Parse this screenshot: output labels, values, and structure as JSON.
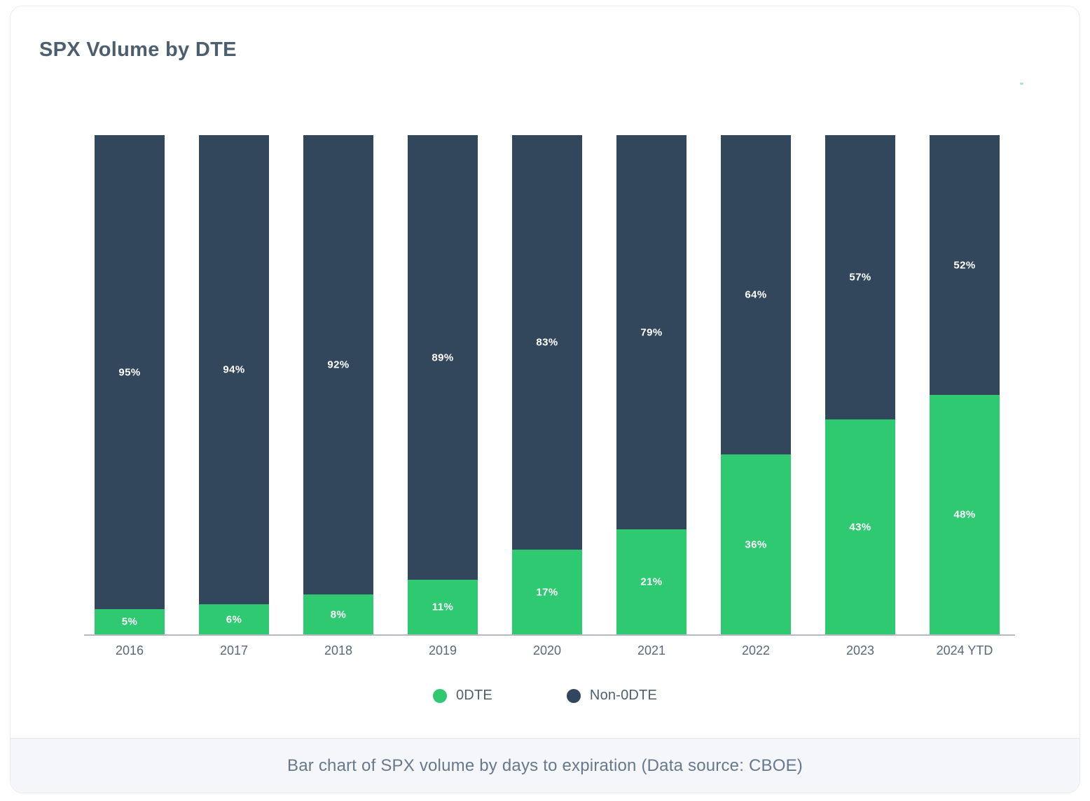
{
  "card": {
    "title": "SPX Volume by DTE",
    "caption": "Bar chart of SPX volume by days to expiration (Data source: CBOE)"
  },
  "chart_data": {
    "type": "bar",
    "stacked": true,
    "title": "SPX Volume by DTE",
    "categories": [
      "2016",
      "2017",
      "2018",
      "2019",
      "2020",
      "2021",
      "2022",
      "2023",
      "2024 YTD"
    ],
    "series": [
      {
        "name": "0DTE",
        "color": "#2ec970",
        "values": [
          5,
          6,
          8,
          11,
          17,
          21,
          36,
          43,
          48
        ]
      },
      {
        "name": "Non-0DTE",
        "color": "#33475c",
        "values": [
          95,
          94,
          92,
          89,
          83,
          79,
          64,
          57,
          52
        ]
      }
    ],
    "value_suffix": "%",
    "value_label_color": "#ffffff",
    "xlabel": "",
    "ylabel": "",
    "ylim": [
      0,
      100
    ],
    "grid": false,
    "axis_line_color": "#b4bac1",
    "legend_position": "bottom-center"
  },
  "legend": {
    "items": [
      {
        "label": "0DTE",
        "color": "#2ec970"
      },
      {
        "label": "Non-0DTE",
        "color": "#33475c"
      }
    ]
  }
}
